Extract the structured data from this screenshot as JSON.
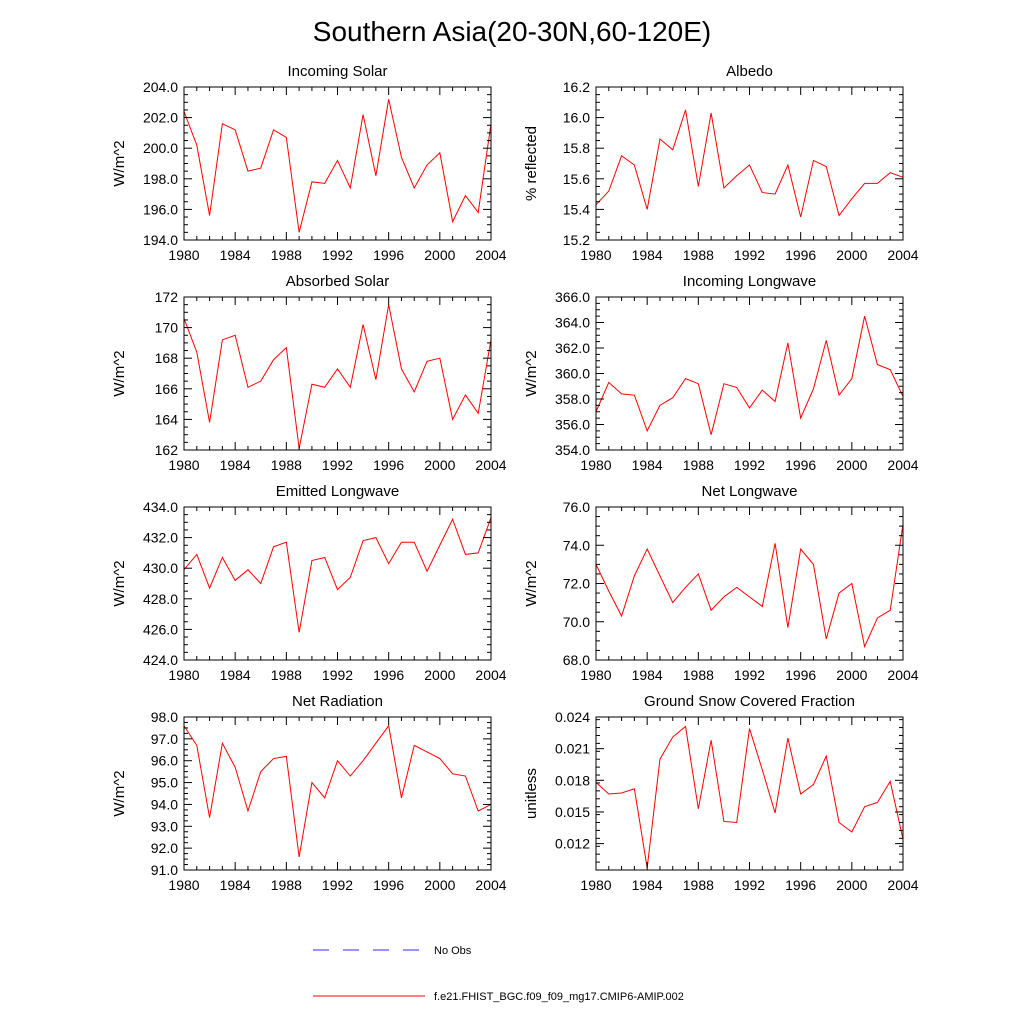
{
  "figure": {
    "title": "Southern Asia(20-30N,60-120E)",
    "legend": [
      {
        "label": "No Obs",
        "color": "#2b2bff",
        "style": "dashed"
      },
      {
        "label": "f.e21.FHIST_BGC.f09_f09_mg17.CMIP6-AMIP.002",
        "color": "#ff0000",
        "style": "solid"
      }
    ],
    "line_color": "#ff0000"
  },
  "chart_data": [
    {
      "type": "line",
      "title": "Incoming Solar",
      "xlabel": "",
      "ylabel": "W/m^2",
      "xlim": [
        1980,
        2004
      ],
      "ylim": [
        194.0,
        204.0
      ],
      "xticks": [
        1980,
        1984,
        1988,
        1992,
        1996,
        2000,
        2004
      ],
      "yticks": [
        194.0,
        196.0,
        198.0,
        200.0,
        202.0,
        204.0
      ],
      "ytick_labels": [
        "194.0",
        "196.0",
        "198.0",
        "200.0",
        "202.0",
        "204.0"
      ],
      "x": [
        1980,
        1981,
        1982,
        1983,
        1984,
        1985,
        1986,
        1987,
        1988,
        1989,
        1990,
        1991,
        1992,
        1993,
        1994,
        1995,
        1996,
        1997,
        1998,
        1999,
        2000,
        2001,
        2002,
        2003,
        2004
      ],
      "series": [
        {
          "name": "f.e21.FHIST_BGC.f09_f09_mg17.CMIP6-AMIP.002",
          "values": [
            202.4,
            200.2,
            195.6,
            201.6,
            201.2,
            198.5,
            198.7,
            201.2,
            200.7,
            194.5,
            197.8,
            197.7,
            199.2,
            197.4,
            202.2,
            198.2,
            203.2,
            199.4,
            197.4,
            198.9,
            199.7,
            195.2,
            196.9,
            195.8,
            201.6
          ]
        }
      ]
    },
    {
      "type": "line",
      "title": "Albedo",
      "xlabel": "",
      "ylabel": "% reflected",
      "xlim": [
        1980,
        2004
      ],
      "ylim": [
        15.2,
        16.2
      ],
      "xticks": [
        1980,
        1984,
        1988,
        1992,
        1996,
        2000,
        2004
      ],
      "yticks": [
        15.2,
        15.4,
        15.6,
        15.8,
        16.0,
        16.2
      ],
      "ytick_labels": [
        "15.2",
        "15.4",
        "15.6",
        "15.8",
        "16.0",
        "16.2"
      ],
      "x": [
        1980,
        1981,
        1982,
        1983,
        1984,
        1985,
        1986,
        1987,
        1988,
        1989,
        1990,
        1991,
        1992,
        1993,
        1994,
        1995,
        1996,
        1997,
        1998,
        1999,
        2000,
        2001,
        2002,
        2003,
        2004
      ],
      "series": [
        {
          "name": "f.e21.FHIST_BGC.f09_f09_mg17.CMIP6-AMIP.002",
          "values": [
            15.43,
            15.52,
            15.75,
            15.69,
            15.4,
            15.86,
            15.79,
            16.05,
            15.55,
            16.03,
            15.54,
            15.62,
            15.69,
            15.51,
            15.5,
            15.69,
            15.35,
            15.72,
            15.68,
            15.36,
            15.47,
            15.57,
            15.57,
            15.64,
            15.61
          ]
        }
      ]
    },
    {
      "type": "line",
      "title": "Absorbed Solar",
      "xlabel": "",
      "ylabel": "W/m^2",
      "xlim": [
        1980,
        2004
      ],
      "ylim": [
        162,
        172
      ],
      "xticks": [
        1980,
        1984,
        1988,
        1992,
        1996,
        2000,
        2004
      ],
      "yticks": [
        162,
        164,
        166,
        168,
        170,
        172
      ],
      "ytick_labels": [
        "162",
        "164",
        "166",
        "168",
        "170",
        "172"
      ],
      "x": [
        1980,
        1981,
        1982,
        1983,
        1984,
        1985,
        1986,
        1987,
        1988,
        1989,
        1990,
        1991,
        1992,
        1993,
        1994,
        1995,
        1996,
        1997,
        1998,
        1999,
        2000,
        2001,
        2002,
        2003,
        2004
      ],
      "series": [
        {
          "name": "f.e21.FHIST_BGC.f09_f09_mg17.CMIP6-AMIP.002",
          "values": [
            170.6,
            168.4,
            163.8,
            169.2,
            169.5,
            166.1,
            166.5,
            167.9,
            168.7,
            162.1,
            166.3,
            166.1,
            167.3,
            166.1,
            170.2,
            166.6,
            171.5,
            167.3,
            165.8,
            167.8,
            168.0,
            164.0,
            165.6,
            164.4,
            169.2
          ]
        }
      ]
    },
    {
      "type": "line",
      "title": "Incoming Longwave",
      "xlabel": "",
      "ylabel": "W/m^2",
      "xlim": [
        1980,
        2004
      ],
      "ylim": [
        354.0,
        366.0
      ],
      "xticks": [
        1980,
        1984,
        1988,
        1992,
        1996,
        2000,
        2004
      ],
      "yticks": [
        354.0,
        356.0,
        358.0,
        360.0,
        362.0,
        364.0,
        366.0
      ],
      "ytick_labels": [
        "354.0",
        "356.0",
        "358.0",
        "360.0",
        "362.0",
        "364.0",
        "366.0"
      ],
      "x": [
        1980,
        1981,
        1982,
        1983,
        1984,
        1985,
        1986,
        1987,
        1988,
        1989,
        1990,
        1991,
        1992,
        1993,
        1994,
        1995,
        1996,
        1997,
        1998,
        1999,
        2000,
        2001,
        2002,
        2003,
        2004
      ],
      "series": [
        {
          "name": "f.e21.FHIST_BGC.f09_f09_mg17.CMIP6-AMIP.002",
          "values": [
            357.0,
            359.3,
            358.4,
            358.3,
            355.5,
            357.5,
            358.1,
            359.6,
            359.2,
            355.2,
            359.2,
            358.9,
            357.3,
            358.7,
            357.8,
            362.4,
            356.5,
            358.8,
            362.6,
            358.3,
            359.6,
            364.5,
            360.7,
            360.3,
            358.2
          ]
        }
      ]
    },
    {
      "type": "line",
      "title": "Emitted Longwave",
      "xlabel": "",
      "ylabel": "W/m^2",
      "xlim": [
        1980,
        2004
      ],
      "ylim": [
        424.0,
        434.0
      ],
      "xticks": [
        1980,
        1984,
        1988,
        1992,
        1996,
        2000,
        2004
      ],
      "yticks": [
        424.0,
        426.0,
        428.0,
        430.0,
        432.0,
        434.0
      ],
      "ytick_labels": [
        "424.0",
        "426.0",
        "428.0",
        "430.0",
        "432.0",
        "434.0"
      ],
      "x": [
        1980,
        1981,
        1982,
        1983,
        1984,
        1985,
        1986,
        1987,
        1988,
        1989,
        1990,
        1991,
        1992,
        1993,
        1994,
        1995,
        1996,
        1997,
        1998,
        1999,
        2000,
        2001,
        2002,
        2003,
        2004
      ],
      "series": [
        {
          "name": "f.e21.FHIST_BGC.f09_f09_mg17.CMIP6-AMIP.002",
          "values": [
            429.9,
            430.9,
            428.7,
            430.7,
            429.2,
            429.9,
            429.0,
            431.4,
            431.7,
            425.8,
            430.5,
            430.7,
            428.6,
            429.4,
            431.8,
            432.0,
            430.3,
            431.7,
            431.7,
            429.8,
            431.5,
            433.2,
            430.9,
            431.0,
            433.3
          ]
        }
      ]
    },
    {
      "type": "line",
      "title": "Net Longwave",
      "xlabel": "",
      "ylabel": "W/m^2",
      "xlim": [
        1980,
        2004
      ],
      "ylim": [
        68.0,
        76.0
      ],
      "xticks": [
        1980,
        1984,
        1988,
        1992,
        1996,
        2000,
        2004
      ],
      "yticks": [
        68.0,
        70.0,
        72.0,
        74.0,
        76.0
      ],
      "ytick_labels": [
        "68.0",
        "70.0",
        "72.0",
        "74.0",
        "76.0"
      ],
      "x": [
        1980,
        1981,
        1982,
        1983,
        1984,
        1985,
        1986,
        1987,
        1988,
        1989,
        1990,
        1991,
        1992,
        1993,
        1994,
        1995,
        1996,
        1997,
        1998,
        1999,
        2000,
        2001,
        2002,
        2003,
        2004
      ],
      "series": [
        {
          "name": "f.e21.FHIST_BGC.f09_f09_mg17.CMIP6-AMIP.002",
          "values": [
            73.0,
            71.6,
            70.3,
            72.4,
            73.8,
            72.4,
            71.0,
            71.8,
            72.5,
            70.6,
            71.3,
            71.8,
            71.3,
            70.8,
            74.1,
            69.7,
            73.8,
            73.0,
            69.1,
            71.5,
            72.0,
            68.7,
            70.2,
            70.6,
            75.1
          ]
        }
      ]
    },
    {
      "type": "line",
      "title": "Net Radiation",
      "xlabel": "",
      "ylabel": "W/m^2",
      "xlim": [
        1980,
        2004
      ],
      "ylim": [
        91.0,
        98.0
      ],
      "xticks": [
        1980,
        1984,
        1988,
        1992,
        1996,
        2000,
        2004
      ],
      "yticks": [
        91.0,
        92.0,
        93.0,
        94.0,
        95.0,
        96.0,
        97.0,
        98.0
      ],
      "ytick_labels": [
        "91.0",
        "92.0",
        "93.0",
        "94.0",
        "95.0",
        "96.0",
        "97.0",
        "98.0"
      ],
      "x": [
        1980,
        1981,
        1982,
        1983,
        1984,
        1985,
        1986,
        1987,
        1988,
        1989,
        1990,
        1991,
        1992,
        1993,
        1994,
        1995,
        1996,
        1997,
        1998,
        1999,
        2000,
        2001,
        2002,
        2003,
        2004
      ],
      "series": [
        {
          "name": "f.e21.FHIST_BGC.f09_f09_mg17.CMIP6-AMIP.002",
          "values": [
            97.6,
            96.7,
            93.4,
            96.8,
            95.7,
            93.7,
            95.5,
            96.1,
            96.2,
            91.6,
            95.0,
            94.3,
            96.0,
            95.3,
            96.0,
            96.8,
            97.6,
            94.3,
            96.7,
            96.4,
            96.1,
            95.4,
            95.3,
            93.7,
            94.0
          ]
        }
      ]
    },
    {
      "type": "line",
      "title": "Ground Snow Covered Fraction",
      "xlabel": "",
      "ylabel": "unitless",
      "xlim": [
        1980,
        2004
      ],
      "ylim": [
        0.0095,
        0.024
      ],
      "xticks": [
        1980,
        1984,
        1988,
        1992,
        1996,
        2000,
        2004
      ],
      "yticks": [
        0.012,
        0.015,
        0.018,
        0.021,
        0.024
      ],
      "ytick_labels": [
        "0.012",
        "0.015",
        "0.018",
        "0.021",
        "0.024"
      ],
      "x": [
        1980,
        1981,
        1982,
        1983,
        1984,
        1985,
        1986,
        1987,
        1988,
        1989,
        1990,
        1991,
        1992,
        1993,
        1994,
        1995,
        1996,
        1997,
        1998,
        1999,
        2000,
        2001,
        2002,
        2003,
        2004
      ],
      "series": [
        {
          "name": "f.e21.FHIST_BGC.f09_f09_mg17.CMIP6-AMIP.002",
          "values": [
            0.0178,
            0.0167,
            0.0168,
            0.0172,
            0.0097,
            0.02,
            0.0221,
            0.0231,
            0.0153,
            0.0218,
            0.0141,
            0.014,
            0.0229,
            0.019,
            0.0149,
            0.022,
            0.0167,
            0.0176,
            0.0203,
            0.014,
            0.0131,
            0.0155,
            0.0159,
            0.0179,
            0.0124
          ]
        }
      ]
    }
  ]
}
